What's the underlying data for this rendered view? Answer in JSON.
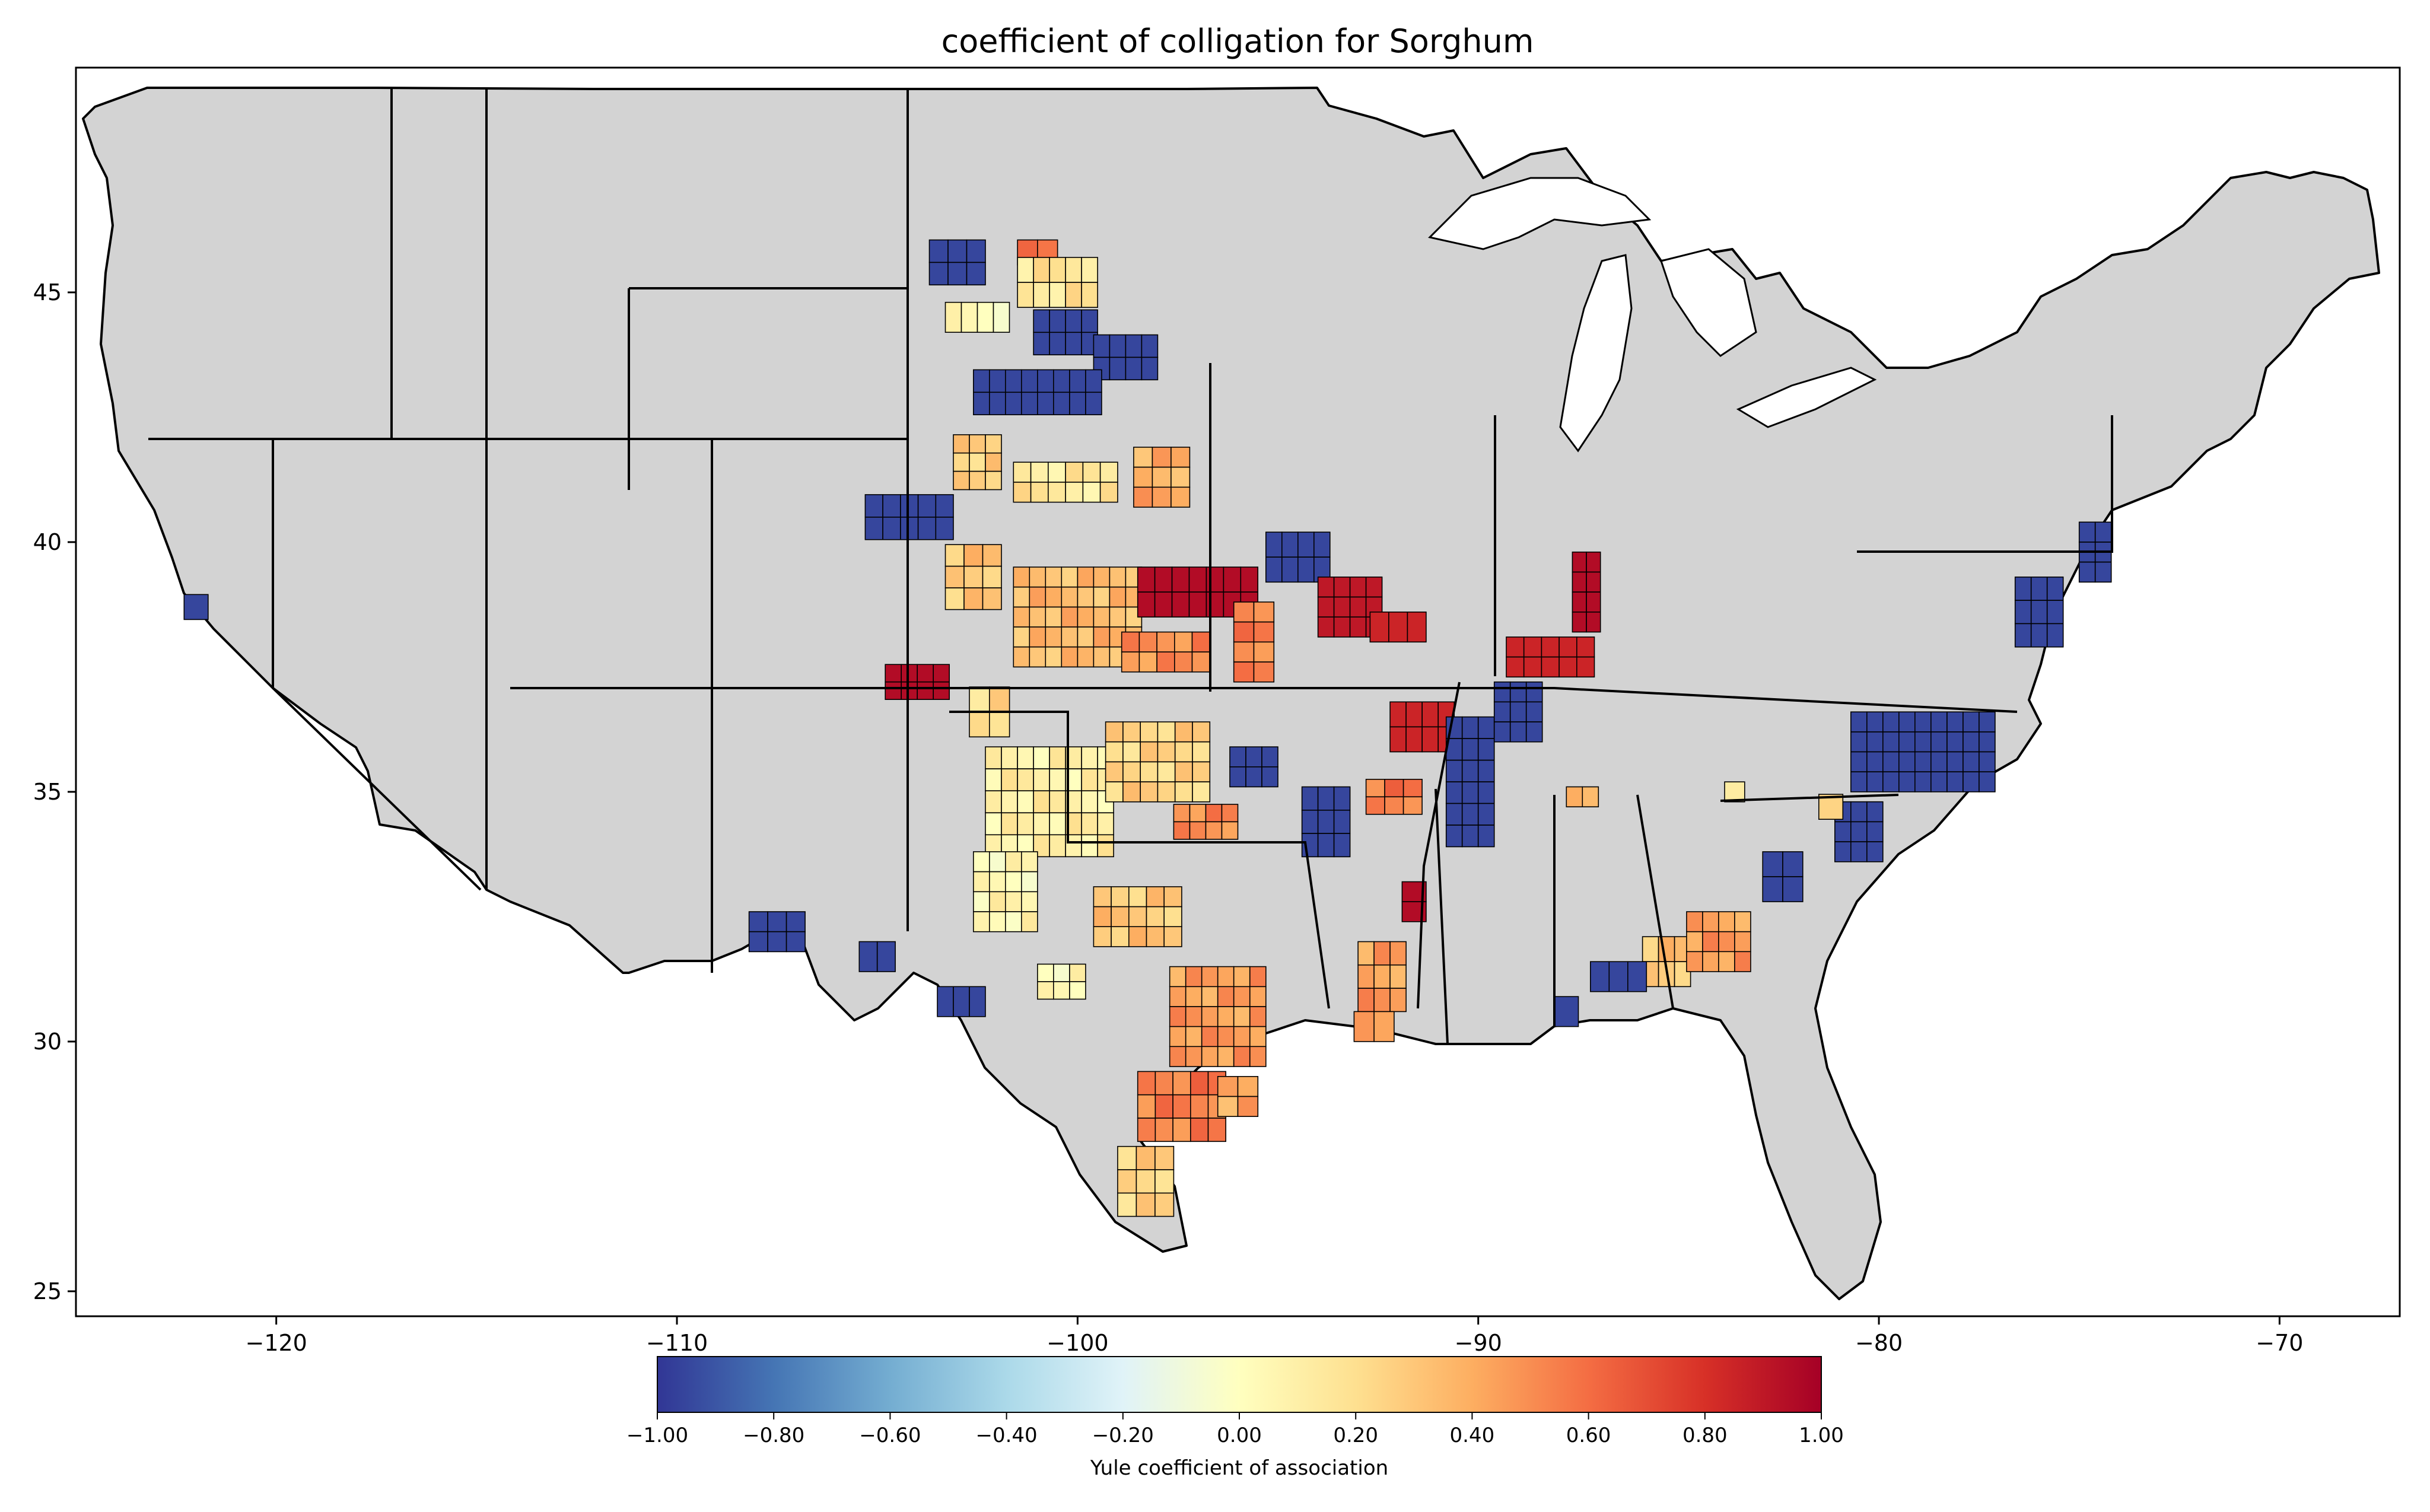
{
  "title": "coefficient of colligation for Sorghum",
  "x_ticks": [
    "−120",
    "−110",
    "−100",
    "−90",
    "−80",
    "−70"
  ],
  "y_ticks": [
    "45",
    "40",
    "35",
    "30",
    "25"
  ],
  "colorbar": {
    "label": "Yule coefficient of association",
    "ticks": [
      "−1.00",
      "−0.80",
      "−0.60",
      "−0.40",
      "−0.20",
      "0.00",
      "0.20",
      "0.40",
      "0.60",
      "0.80",
      "1.00"
    ],
    "colors": [
      "#313695",
      "#4575b4",
      "#74add1",
      "#abd9e9",
      "#e0f3f8",
      "#ffffbf",
      "#fee090",
      "#fdae61",
      "#f46d43",
      "#d73027",
      "#a50026"
    ]
  },
  "colors": {
    "no_data": "#d3d3d3",
    "border": "#000000"
  },
  "chart_data": {
    "type": "map",
    "title": "coefficient of colligation for Sorghum",
    "xlim": [
      -125,
      -67
    ],
    "ylim": [
      24.5,
      49.5
    ],
    "x_ticks": [
      -120,
      -110,
      -100,
      -90,
      -80,
      -70
    ],
    "y_ticks": [
      45,
      40,
      35,
      30,
      25
    ],
    "colorbar": {
      "label": "Yule coefficient of association",
      "min": -1.0,
      "max": 1.0
    },
    "regions": [
      {
        "lon": -103.0,
        "lat": 45.6,
        "w": 1.4,
        "h": 0.9,
        "value": -0.95
      },
      {
        "lon": -101.0,
        "lat": 45.8,
        "w": 1.0,
        "h": 0.5,
        "value": 0.6
      },
      {
        "lon": -100.5,
        "lat": 45.2,
        "w": 2.0,
        "h": 1.0,
        "value": 0.15
      },
      {
        "lon": -102.5,
        "lat": 44.5,
        "w": 1.6,
        "h": 0.6,
        "value": 0.05
      },
      {
        "lon": -100.3,
        "lat": 44.2,
        "w": 1.6,
        "h": 0.9,
        "value": -0.95
      },
      {
        "lon": -98.8,
        "lat": 43.7,
        "w": 1.6,
        "h": 0.9,
        "value": -0.95
      },
      {
        "lon": -101.0,
        "lat": 43.0,
        "w": 3.2,
        "h": 0.9,
        "value": -0.95
      },
      {
        "lon": -102.5,
        "lat": 41.6,
        "w": 1.2,
        "h": 1.1,
        "value": 0.25
      },
      {
        "lon": -100.3,
        "lat": 41.2,
        "w": 2.6,
        "h": 0.8,
        "value": 0.15
      },
      {
        "lon": -97.9,
        "lat": 41.3,
        "w": 1.4,
        "h": 1.2,
        "value": 0.4
      },
      {
        "lon": -104.2,
        "lat": 40.5,
        "w": 2.2,
        "h": 0.9,
        "value": -0.95
      },
      {
        "lon": -102.6,
        "lat": 39.3,
        "w": 1.4,
        "h": 1.3,
        "value": 0.3
      },
      {
        "lon": -100.0,
        "lat": 38.5,
        "w": 3.2,
        "h": 2.0,
        "value": 0.35
      },
      {
        "lon": -97.0,
        "lat": 39.0,
        "w": 3.0,
        "h": 1.0,
        "value": 0.95
      },
      {
        "lon": -97.8,
        "lat": 37.8,
        "w": 2.2,
        "h": 0.8,
        "value": 0.5
      },
      {
        "lon": -95.6,
        "lat": 38.0,
        "w": 1.0,
        "h": 1.6,
        "value": 0.55
      },
      {
        "lon": -94.5,
        "lat": 39.7,
        "w": 1.6,
        "h": 1.0,
        "value": -0.95
      },
      {
        "lon": -93.2,
        "lat": 38.7,
        "w": 1.6,
        "h": 1.2,
        "value": 0.9
      },
      {
        "lon": -92.0,
        "lat": 38.3,
        "w": 1.4,
        "h": 0.6,
        "value": 0.85
      },
      {
        "lon": -104.0,
        "lat": 37.2,
        "w": 1.6,
        "h": 0.7,
        "value": 0.95
      },
      {
        "lon": -102.2,
        "lat": 36.6,
        "w": 1.0,
        "h": 1.0,
        "value": 0.2
      },
      {
        "lon": -100.7,
        "lat": 34.8,
        "w": 3.2,
        "h": 2.2,
        "value": 0.1
      },
      {
        "lon": -101.8,
        "lat": 33.0,
        "w": 1.6,
        "h": 1.6,
        "value": 0.05
      },
      {
        "lon": -98.0,
        "lat": 35.6,
        "w": 2.6,
        "h": 1.6,
        "value": 0.25
      },
      {
        "lon": -96.8,
        "lat": 34.4,
        "w": 1.6,
        "h": 0.7,
        "value": 0.5
      },
      {
        "lon": -95.6,
        "lat": 35.5,
        "w": 1.2,
        "h": 0.8,
        "value": -0.95
      },
      {
        "lon": -98.5,
        "lat": 32.5,
        "w": 2.2,
        "h": 1.2,
        "value": 0.3
      },
      {
        "lon": -96.5,
        "lat": 30.5,
        "w": 2.4,
        "h": 2.0,
        "value": 0.45
      },
      {
        "lon": -97.4,
        "lat": 28.7,
        "w": 2.2,
        "h": 1.4,
        "value": 0.55
      },
      {
        "lon": -98.3,
        "lat": 27.2,
        "w": 1.4,
        "h": 1.4,
        "value": 0.25
      },
      {
        "lon": -96.0,
        "lat": 28.9,
        "w": 1.0,
        "h": 0.8,
        "value": 0.4
      },
      {
        "lon": -100.4,
        "lat": 31.2,
        "w": 1.2,
        "h": 0.7,
        "value": 0.05
      },
      {
        "lon": -102.9,
        "lat": 30.8,
        "w": 1.2,
        "h": 0.6,
        "value": -0.95
      },
      {
        "lon": -107.5,
        "lat": 32.2,
        "w": 1.4,
        "h": 0.8,
        "value": -0.95
      },
      {
        "lon": -105.0,
        "lat": 31.7,
        "w": 0.9,
        "h": 0.6,
        "value": -0.95
      },
      {
        "lon": -122.0,
        "lat": 38.7,
        "w": 0.6,
        "h": 0.5,
        "value": -0.95
      },
      {
        "lon": -92.4,
        "lat": 31.3,
        "w": 1.2,
        "h": 1.4,
        "value": 0.45
      },
      {
        "lon": -91.6,
        "lat": 32.8,
        "w": 0.6,
        "h": 0.8,
        "value": 0.95
      },
      {
        "lon": -92.1,
        "lat": 34.9,
        "w": 1.4,
        "h": 0.7,
        "value": 0.55
      },
      {
        "lon": -91.4,
        "lat": 36.3,
        "w": 1.6,
        "h": 1.0,
        "value": 0.85
      },
      {
        "lon": -90.2,
        "lat": 35.2,
        "w": 1.2,
        "h": 2.6,
        "value": -0.95
      },
      {
        "lon": -89.0,
        "lat": 36.6,
        "w": 1.2,
        "h": 1.2,
        "value": -0.95
      },
      {
        "lon": -88.2,
        "lat": 37.7,
        "w": 2.2,
        "h": 0.8,
        "value": 0.85
      },
      {
        "lon": -87.3,
        "lat": 39.0,
        "w": 0.7,
        "h": 1.6,
        "value": 0.95
      },
      {
        "lon": -87.4,
        "lat": 34.9,
        "w": 0.8,
        "h": 0.4,
        "value": 0.4
      },
      {
        "lon": -93.8,
        "lat": 34.4,
        "w": 1.2,
        "h": 1.4,
        "value": -0.95
      },
      {
        "lon": -92.6,
        "lat": 30.3,
        "w": 1.0,
        "h": 0.6,
        "value": 0.45
      },
      {
        "lon": -85.3,
        "lat": 31.6,
        "w": 1.2,
        "h": 1.0,
        "value": 0.3
      },
      {
        "lon": -84.0,
        "lat": 32.0,
        "w": 1.6,
        "h": 1.2,
        "value": 0.45
      },
      {
        "lon": -86.5,
        "lat": 31.3,
        "w": 1.4,
        "h": 0.6,
        "value": -0.95
      },
      {
        "lon": -87.8,
        "lat": 30.6,
        "w": 0.6,
        "h": 0.6,
        "value": -0.95
      },
      {
        "lon": -82.4,
        "lat": 33.3,
        "w": 1.0,
        "h": 1.0,
        "value": -0.95
      },
      {
        "lon": -78.9,
        "lat": 35.8,
        "w": 3.6,
        "h": 1.6,
        "value": -0.95
      },
      {
        "lon": -80.5,
        "lat": 34.2,
        "w": 1.2,
        "h": 1.2,
        "value": -0.95
      },
      {
        "lon": -76.0,
        "lat": 38.6,
        "w": 1.2,
        "h": 1.4,
        "value": -0.95
      },
      {
        "lon": -74.6,
        "lat": 39.8,
        "w": 0.8,
        "h": 1.2,
        "value": -0.95
      },
      {
        "lon": -83.6,
        "lat": 35.0,
        "w": 0.5,
        "h": 0.4,
        "value": 0.2
      },
      {
        "lon": -81.2,
        "lat": 34.7,
        "w": 0.6,
        "h": 0.5,
        "value": 0.2
      }
    ]
  }
}
